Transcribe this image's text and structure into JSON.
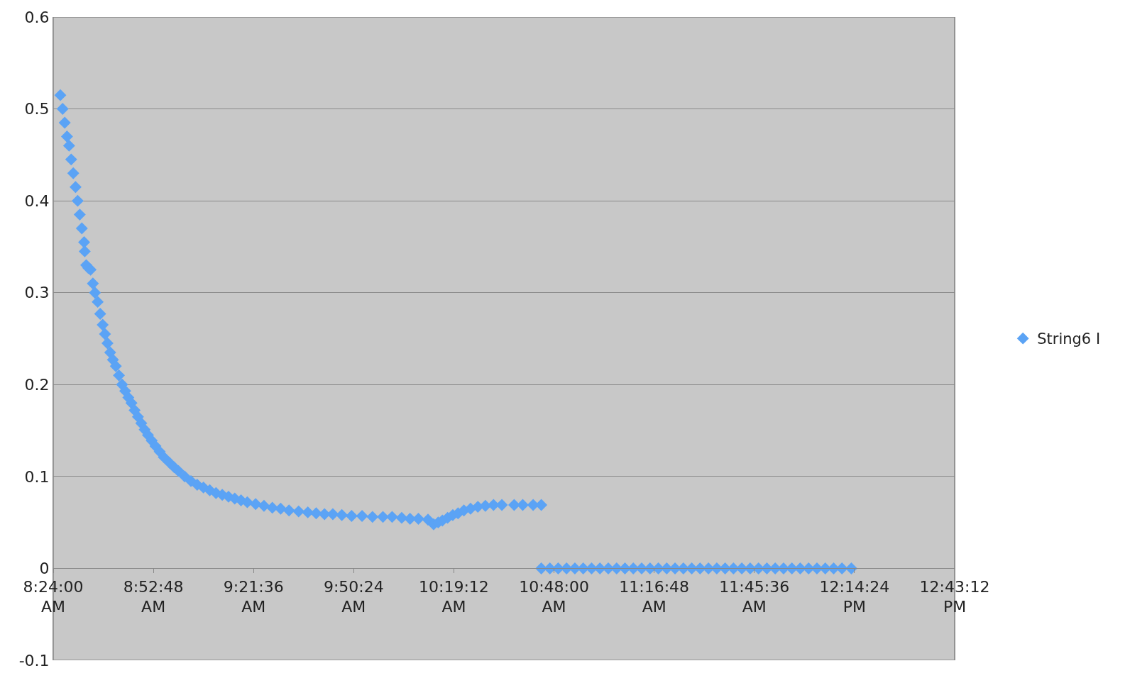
{
  "chart_data": {
    "type": "scatter",
    "marker": "diamond",
    "legend": "right",
    "grid": "y",
    "xlim": [
      8.4,
      12.72
    ],
    "ylim": [
      -0.1,
      0.6
    ],
    "xticks": [
      {
        "value": 8.4,
        "label": "8:24:00\nAM"
      },
      {
        "value": 8.88,
        "label": "8:52:48\nAM"
      },
      {
        "value": 9.36,
        "label": "9:21:36\nAM"
      },
      {
        "value": 9.84,
        "label": "9:50:24\nAM"
      },
      {
        "value": 10.32,
        "label": "10:19:12\nAM"
      },
      {
        "value": 10.8,
        "label": "10:48:00\nAM"
      },
      {
        "value": 11.28,
        "label": "11:16:48\nAM"
      },
      {
        "value": 11.76,
        "label": "11:45:36\nAM"
      },
      {
        "value": 12.24,
        "label": "12:14:24\nPM"
      },
      {
        "value": 12.72,
        "label": "12:43:12\nPM"
      }
    ],
    "yticks": [
      -0.1,
      0,
      0.1,
      0.2,
      0.3,
      0.4,
      0.5,
      0.6
    ],
    "series": [
      {
        "name": "String6 I",
        "color": "#5ba3f5",
        "x": [
          8.434,
          8.445,
          8.455,
          8.466,
          8.476,
          8.486,
          8.496,
          8.507,
          8.517,
          8.527,
          8.537,
          8.548,
          8.551,
          8.558,
          8.568,
          8.579,
          8.59,
          8.6,
          8.613,
          8.625,
          8.637,
          8.648,
          8.66,
          8.673,
          8.686,
          8.7,
          8.715,
          8.73,
          8.745,
          8.76,
          8.775,
          8.79,
          8.806,
          8.822,
          8.838,
          8.854,
          8.872,
          8.89,
          8.91,
          8.93,
          8.957,
          8.98,
          9.0,
          9.03,
          9.06,
          9.09,
          9.12,
          9.15,
          9.18,
          9.21,
          9.24,
          9.27,
          9.3,
          9.33,
          9.37,
          9.41,
          9.45,
          9.49,
          9.53,
          9.576,
          9.62,
          9.66,
          9.7,
          9.74,
          9.783,
          9.83,
          9.88,
          9.93,
          9.98,
          10.024,
          10.07,
          10.11,
          10.15,
          10.196,
          10.223,
          10.245,
          10.265,
          10.29,
          10.315,
          10.34,
          10.368,
          10.4,
          10.435,
          10.471,
          10.51,
          10.55,
          10.609,
          10.65,
          10.7,
          10.739,
          10.739,
          10.78,
          10.82,
          10.86,
          10.9,
          10.94,
          10.98,
          11.02,
          11.06,
          11.1,
          11.14,
          11.18,
          11.22,
          11.26,
          11.3,
          11.34,
          11.38,
          11.42,
          11.46,
          11.5,
          11.54,
          11.58,
          11.62,
          11.66,
          11.7,
          11.74,
          11.78,
          11.82,
          11.86,
          11.9,
          11.94,
          11.98,
          12.02,
          12.06,
          12.1,
          12.14,
          12.18,
          12.225
        ],
        "values": [
          0.515,
          0.5,
          0.485,
          0.47,
          0.46,
          0.445,
          0.43,
          0.415,
          0.4,
          0.385,
          0.37,
          0.355,
          0.345,
          0.33,
          0.327,
          0.325,
          0.31,
          0.3,
          0.29,
          0.277,
          0.265,
          0.255,
          0.245,
          0.235,
          0.227,
          0.22,
          0.21,
          0.2,
          0.193,
          0.186,
          0.18,
          0.172,
          0.165,
          0.158,
          0.151,
          0.145,
          0.139,
          0.133,
          0.127,
          0.121,
          0.115,
          0.11,
          0.106,
          0.1,
          0.095,
          0.091,
          0.088,
          0.085,
          0.082,
          0.08,
          0.078,
          0.076,
          0.074,
          0.072,
          0.07,
          0.068,
          0.066,
          0.065,
          0.063,
          0.062,
          0.061,
          0.06,
          0.059,
          0.059,
          0.058,
          0.057,
          0.057,
          0.056,
          0.056,
          0.056,
          0.055,
          0.054,
          0.054,
          0.053,
          0.048,
          0.05,
          0.052,
          0.055,
          0.058,
          0.06,
          0.063,
          0.065,
          0.067,
          0.068,
          0.069,
          0.069,
          0.069,
          0.069,
          0.069,
          0.069,
          0,
          0,
          0,
          0,
          0,
          0,
          0,
          0,
          0,
          0,
          0,
          0,
          0,
          0,
          0,
          0,
          0,
          0,
          0,
          0,
          0,
          0,
          0,
          0,
          0,
          0,
          0,
          0,
          0,
          0,
          0,
          0,
          0,
          0,
          0,
          0,
          0,
          0
        ]
      }
    ]
  }
}
